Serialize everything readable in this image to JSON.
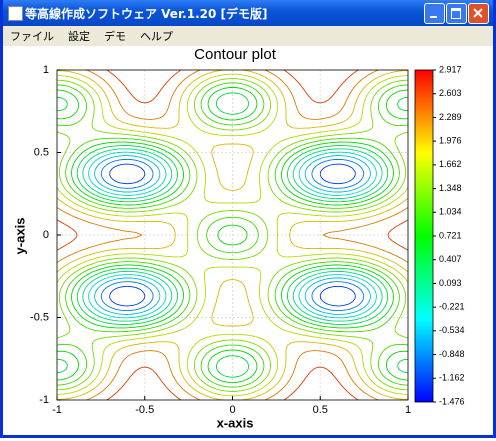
{
  "window": {
    "title": "等高線作成ソフトウェア Ver.1.20 [デモ版]"
  },
  "menu": [
    "ファイル",
    "設定",
    "デモ",
    "ヘルプ"
  ],
  "chart_data": {
    "type": "contour",
    "title": "Contour plot",
    "x_label": "x-axis",
    "y_label": "y-axis",
    "xlim": [
      -1,
      1
    ],
    "ylim": [
      -1,
      1
    ],
    "xticks": [
      -1,
      -0.5,
      0,
      0.5,
      1
    ],
    "yticks": [
      -1,
      -0.5,
      0,
      0.5,
      1
    ],
    "grid": true,
    "colorbar": {
      "lim": [
        -1.476,
        2.917
      ],
      "ticks": [
        2.917,
        2.603,
        2.289,
        1.976,
        1.662,
        1.348,
        1.034,
        0.721,
        0.407,
        0.093,
        -0.221,
        -0.534,
        -0.848,
        -1.162,
        -1.476
      ]
    }
  }
}
